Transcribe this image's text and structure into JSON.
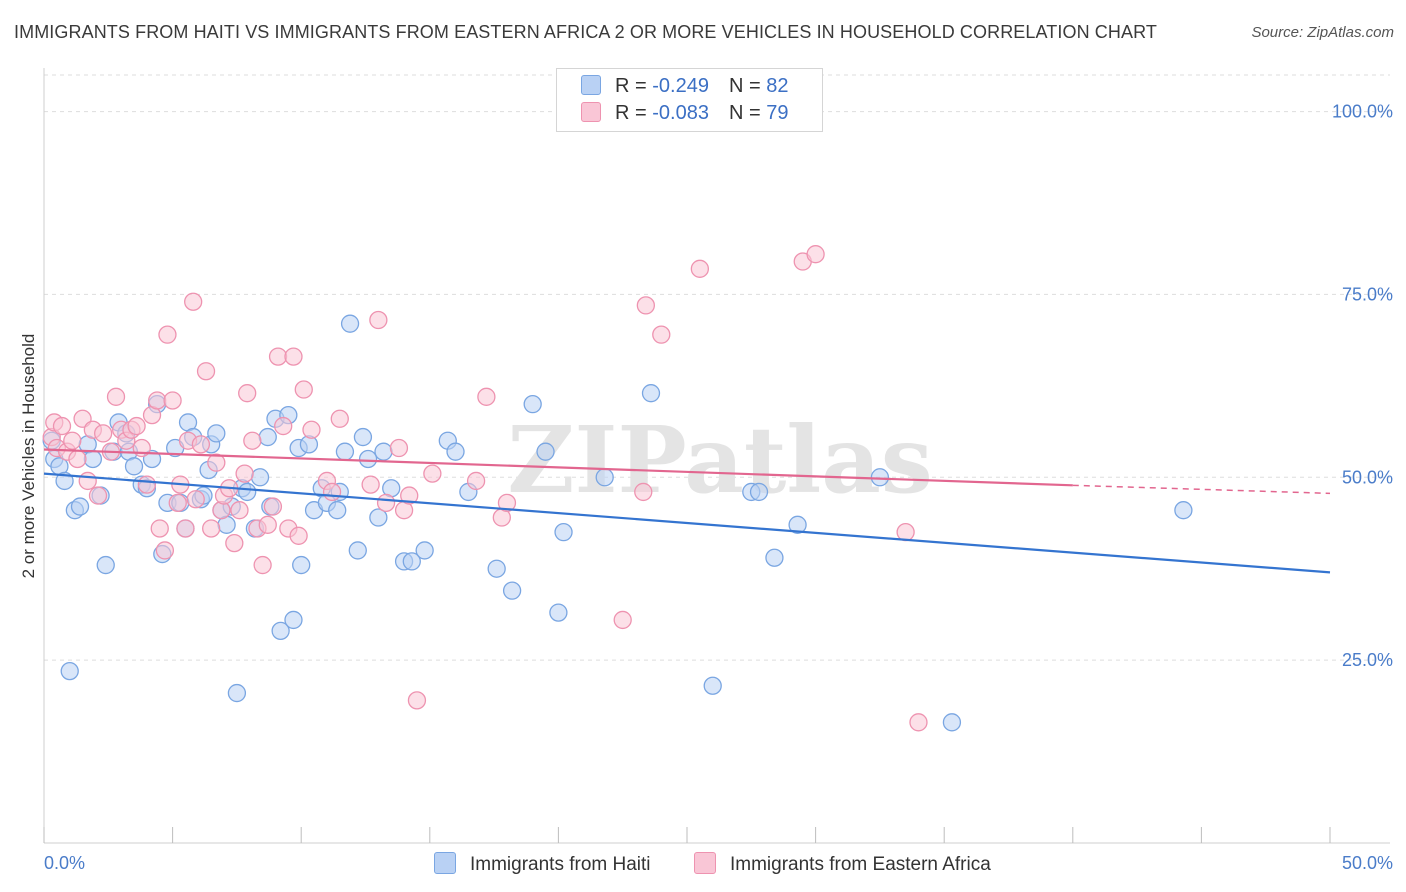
{
  "header": {
    "title": "IMMIGRANTS FROM HAITI VS IMMIGRANTS FROM EASTERN AFRICA 2 OR MORE VEHICLES IN HOUSEHOLD CORRELATION CHART",
    "source": "Source: ZipAtlas.com"
  },
  "legend": {
    "rows": [
      {
        "r_label": "R = ",
        "r_value": "-0.249",
        "n_label": "N = ",
        "n_value": "82"
      },
      {
        "r_label": "R = ",
        "r_value": "-0.083",
        "n_label": "N = ",
        "n_value": "79"
      }
    ]
  },
  "colors": {
    "haiti_fill": "#b9d1f4",
    "haiti_stroke": "#7aa6e2",
    "haiti_line": "#3474d0",
    "eafrica_fill": "#f9c6d6",
    "eafrica_stroke": "#ee93b0",
    "eafrica_line": "#e2668f",
    "tick_text": "#4a7cc9",
    "grid": "#dddddd"
  },
  "chart_data": {
    "type": "scatter",
    "xlabel": "",
    "ylabel": "2 or more Vehicles in Household",
    "xlim": [
      0,
      50
    ],
    "ylim": [
      0,
      105
    ],
    "x_tick_labels": [
      "0.0%",
      "50.0%"
    ],
    "y_ticks": [
      25,
      50,
      75,
      100
    ],
    "y_tick_labels": [
      "25.0%",
      "50.0%",
      "75.0%",
      "100.0%"
    ],
    "grid": true,
    "watermark": "ZIPatlas",
    "series": [
      {
        "name": "Immigrants from Haiti",
        "trend": {
          "x": [
            0,
            50
          ],
          "y": [
            50.5,
            37.0
          ]
        },
        "points": [
          [
            0.3,
            55.0
          ],
          [
            0.4,
            52.5
          ],
          [
            0.6,
            51.5
          ],
          [
            0.8,
            49.5
          ],
          [
            1.0,
            23.5
          ],
          [
            1.2,
            45.5
          ],
          [
            1.4,
            46.0
          ],
          [
            1.7,
            54.5
          ],
          [
            1.9,
            52.5
          ],
          [
            2.2,
            47.5
          ],
          [
            2.4,
            38.0
          ],
          [
            2.7,
            53.5
          ],
          [
            2.9,
            57.5
          ],
          [
            3.2,
            56.0
          ],
          [
            3.3,
            53.5
          ],
          [
            3.5,
            51.5
          ],
          [
            3.8,
            49.0
          ],
          [
            4.0,
            48.5
          ],
          [
            4.2,
            52.5
          ],
          [
            4.4,
            60.0
          ],
          [
            4.6,
            39.5
          ],
          [
            4.8,
            46.5
          ],
          [
            5.1,
            54.0
          ],
          [
            5.3,
            46.5
          ],
          [
            5.5,
            43.0
          ],
          [
            5.6,
            57.5
          ],
          [
            5.8,
            55.5
          ],
          [
            6.1,
            47.0
          ],
          [
            6.2,
            47.5
          ],
          [
            6.4,
            51.0
          ],
          [
            6.5,
            54.5
          ],
          [
            6.7,
            56.0
          ],
          [
            6.9,
            45.5
          ],
          [
            7.1,
            43.5
          ],
          [
            7.3,
            46.0
          ],
          [
            7.5,
            20.5
          ],
          [
            7.7,
            48.5
          ],
          [
            7.9,
            48.0
          ],
          [
            8.2,
            43.0
          ],
          [
            8.4,
            50.0
          ],
          [
            8.7,
            55.5
          ],
          [
            8.8,
            46.0
          ],
          [
            9.0,
            58.0
          ],
          [
            9.2,
            29.0
          ],
          [
            9.5,
            58.5
          ],
          [
            9.7,
            30.5
          ],
          [
            9.9,
            54.0
          ],
          [
            10.0,
            38.0
          ],
          [
            10.3,
            54.5
          ],
          [
            10.5,
            45.5
          ],
          [
            10.8,
            48.5
          ],
          [
            11.0,
            46.5
          ],
          [
            11.4,
            45.5
          ],
          [
            11.5,
            48.0
          ],
          [
            11.7,
            53.5
          ],
          [
            11.9,
            71.0
          ],
          [
            12.2,
            40.0
          ],
          [
            12.4,
            55.5
          ],
          [
            12.6,
            52.5
          ],
          [
            13.0,
            44.5
          ],
          [
            13.2,
            53.5
          ],
          [
            13.5,
            48.5
          ],
          [
            14.0,
            38.5
          ],
          [
            14.3,
            38.5
          ],
          [
            14.8,
            40.0
          ],
          [
            15.7,
            55.0
          ],
          [
            16.0,
            53.5
          ],
          [
            16.5,
            48.0
          ],
          [
            17.6,
            37.5
          ],
          [
            18.2,
            34.5
          ],
          [
            19.0,
            60.0
          ],
          [
            19.5,
            53.5
          ],
          [
            20.0,
            31.5
          ],
          [
            20.2,
            42.5
          ],
          [
            21.8,
            50.0
          ],
          [
            23.6,
            61.5
          ],
          [
            26.0,
            21.5
          ],
          [
            27.5,
            48.0
          ],
          [
            27.8,
            48.0
          ],
          [
            28.4,
            39.0
          ],
          [
            29.3,
            43.5
          ],
          [
            32.5,
            50.0
          ],
          [
            35.3,
            16.5
          ],
          [
            44.3,
            45.5
          ]
        ]
      },
      {
        "name": "Immigrants from Eastern Africa",
        "trend": {
          "x": [
            0,
            40
          ],
          "y": [
            53.8,
            48.9
          ]
        },
        "trend_dashed_to": {
          "x": 50,
          "y": 47.8
        },
        "points": [
          [
            0.3,
            55.5
          ],
          [
            0.4,
            57.5
          ],
          [
            0.5,
            54.0
          ],
          [
            0.7,
            57.0
          ],
          [
            0.9,
            53.5
          ],
          [
            1.1,
            55.0
          ],
          [
            1.3,
            52.5
          ],
          [
            1.5,
            58.0
          ],
          [
            1.7,
            49.5
          ],
          [
            1.9,
            56.5
          ],
          [
            2.1,
            47.5
          ],
          [
            2.3,
            56.0
          ],
          [
            2.6,
            53.5
          ],
          [
            2.8,
            61.0
          ],
          [
            3.0,
            56.5
          ],
          [
            3.2,
            55.0
          ],
          [
            3.4,
            56.5
          ],
          [
            3.6,
            57.0
          ],
          [
            3.8,
            54.0
          ],
          [
            4.0,
            49.0
          ],
          [
            4.2,
            58.5
          ],
          [
            4.4,
            60.5
          ],
          [
            4.5,
            43.0
          ],
          [
            4.7,
            40.0
          ],
          [
            4.8,
            69.5
          ],
          [
            5.0,
            60.5
          ],
          [
            5.2,
            46.5
          ],
          [
            5.3,
            49.0
          ],
          [
            5.5,
            43.0
          ],
          [
            5.6,
            55.0
          ],
          [
            5.8,
            74.0
          ],
          [
            5.9,
            47.0
          ],
          [
            6.1,
            54.5
          ],
          [
            6.3,
            64.5
          ],
          [
            6.5,
            43.0
          ],
          [
            6.7,
            52.0
          ],
          [
            6.9,
            45.5
          ],
          [
            7.0,
            47.5
          ],
          [
            7.2,
            48.5
          ],
          [
            7.4,
            41.0
          ],
          [
            7.6,
            45.5
          ],
          [
            7.8,
            50.5
          ],
          [
            7.9,
            61.5
          ],
          [
            8.1,
            55.0
          ],
          [
            8.3,
            43.0
          ],
          [
            8.5,
            38.0
          ],
          [
            8.7,
            43.5
          ],
          [
            8.9,
            46.0
          ],
          [
            9.1,
            66.5
          ],
          [
            9.3,
            57.0
          ],
          [
            9.5,
            43.0
          ],
          [
            9.7,
            66.5
          ],
          [
            9.9,
            42.0
          ],
          [
            10.1,
            62.0
          ],
          [
            10.4,
            56.5
          ],
          [
            11.0,
            49.5
          ],
          [
            11.2,
            48.0
          ],
          [
            11.5,
            58.0
          ],
          [
            12.7,
            49.0
          ],
          [
            13.0,
            71.5
          ],
          [
            13.3,
            46.5
          ],
          [
            13.8,
            54.0
          ],
          [
            14.0,
            45.5
          ],
          [
            14.2,
            47.5
          ],
          [
            14.5,
            19.5
          ],
          [
            15.1,
            50.5
          ],
          [
            16.8,
            49.5
          ],
          [
            17.2,
            61.0
          ],
          [
            17.8,
            44.5
          ],
          [
            18.0,
            46.5
          ],
          [
            22.5,
            30.5
          ],
          [
            23.3,
            48.0
          ],
          [
            23.4,
            73.5
          ],
          [
            24.0,
            69.5
          ],
          [
            25.5,
            78.5
          ],
          [
            29.5,
            79.5
          ],
          [
            30.0,
            80.5
          ],
          [
            33.5,
            42.5
          ],
          [
            34.0,
            16.5
          ]
        ]
      }
    ]
  },
  "bottom_legend": {
    "items": [
      {
        "label": "Immigrants from Haiti"
      },
      {
        "label": "Immigrants from Eastern Africa"
      }
    ]
  }
}
